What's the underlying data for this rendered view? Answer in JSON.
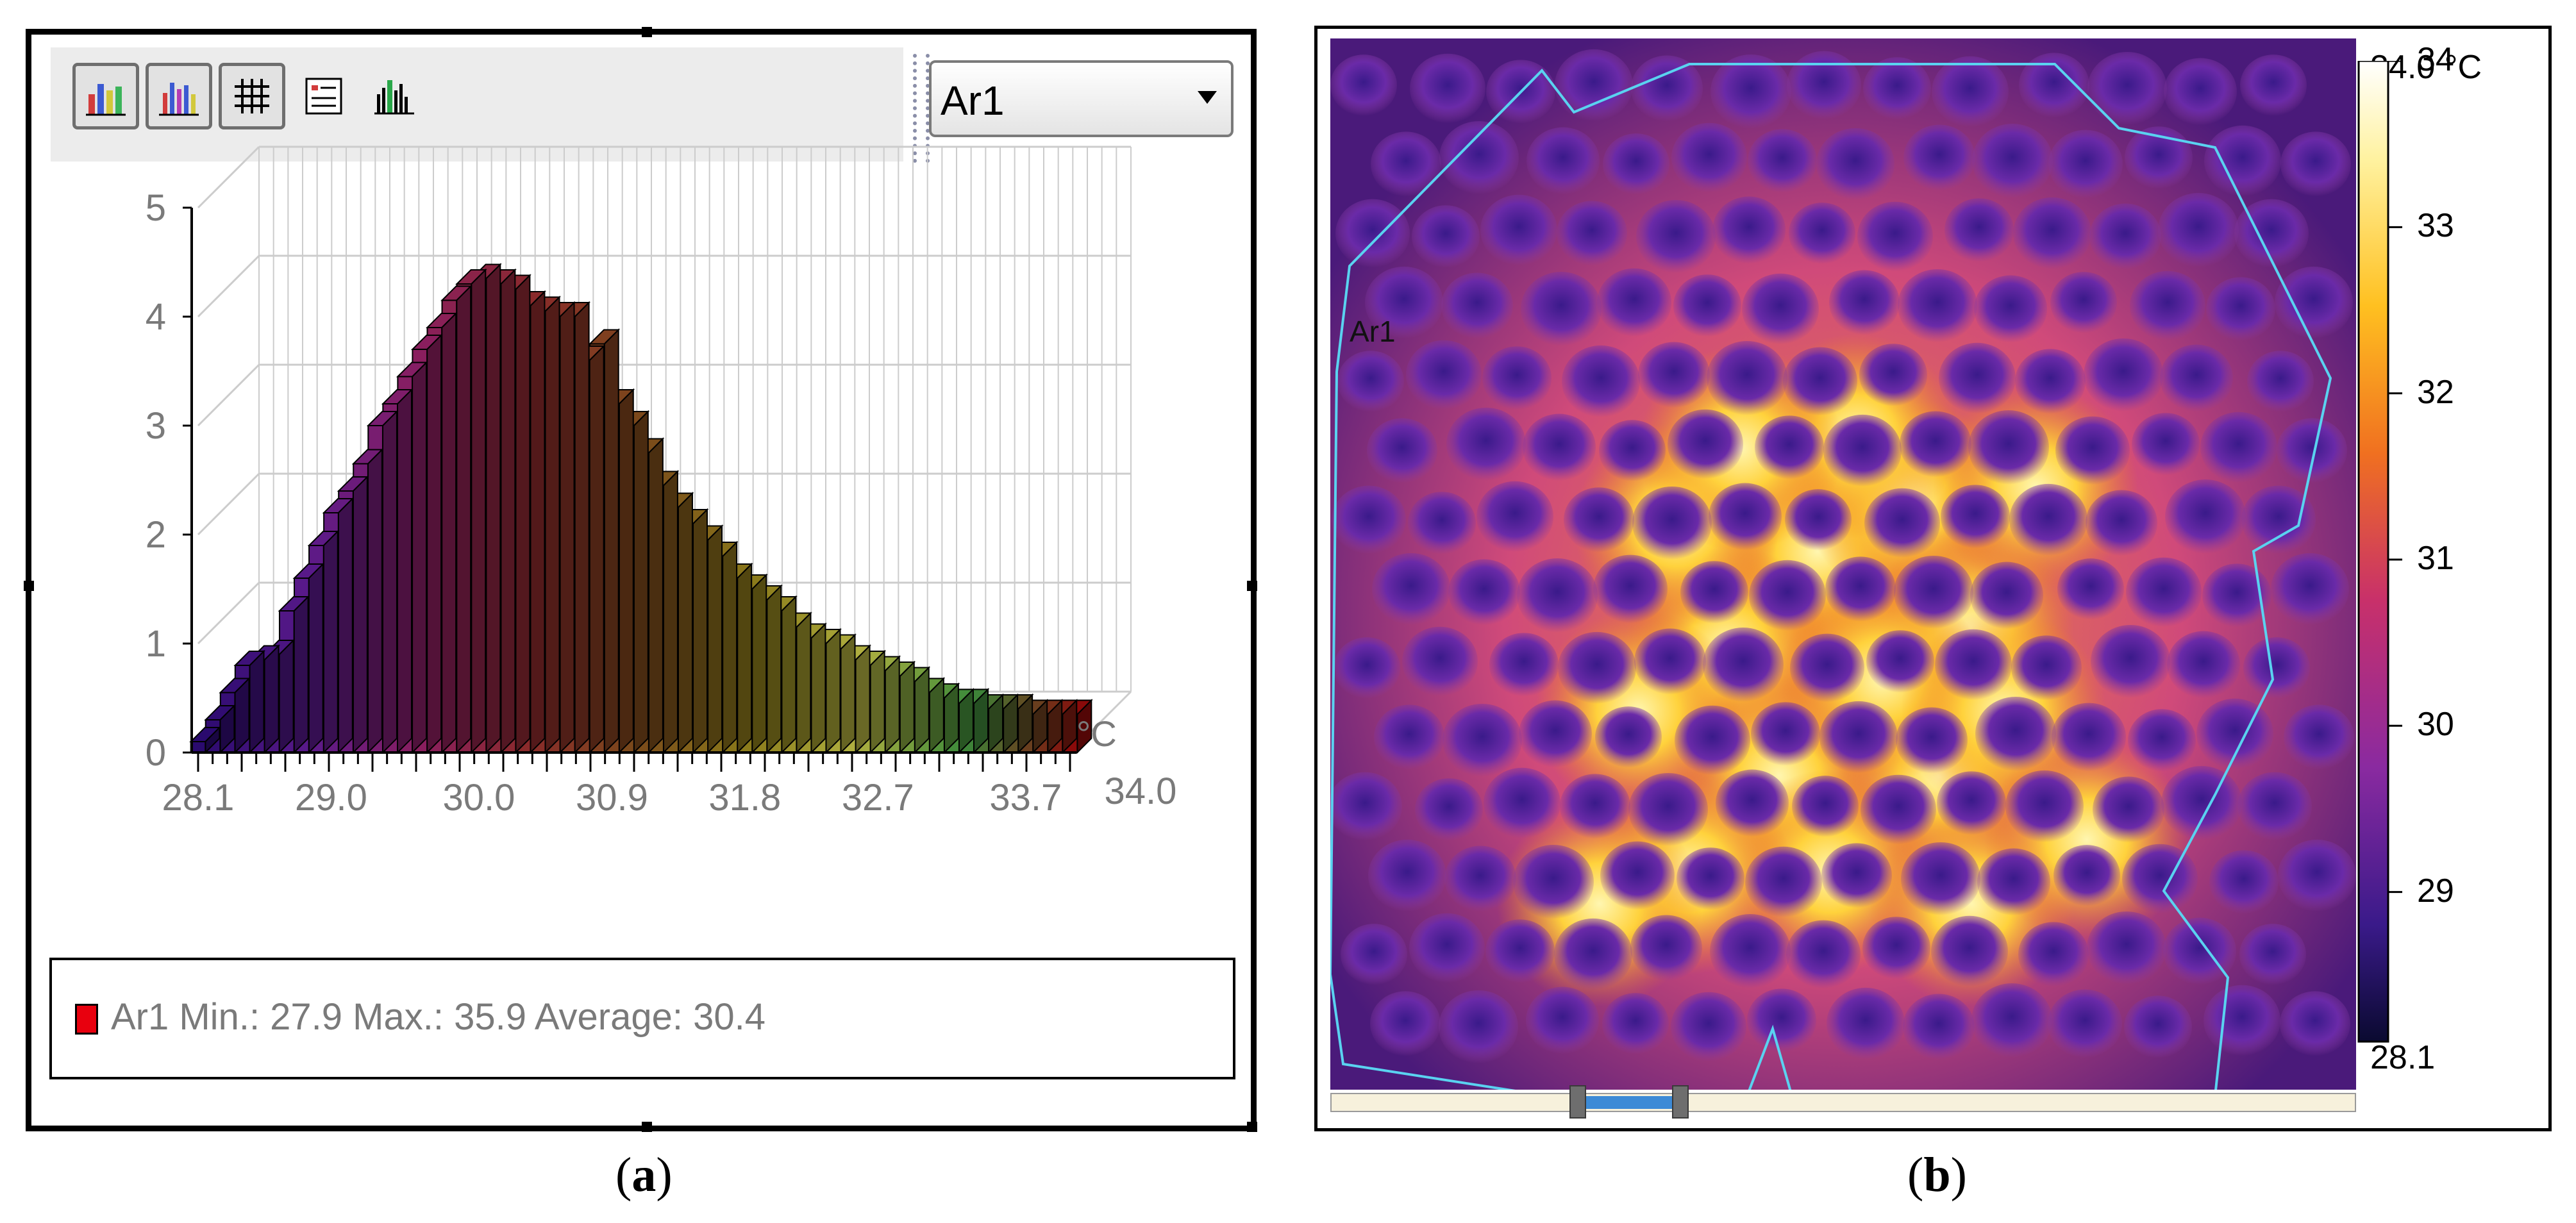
{
  "captions": {
    "a": {
      "open": "(",
      "letter": "a",
      "close": ")"
    },
    "b": {
      "open": "(",
      "letter": "b",
      "close": ")"
    }
  },
  "toolbar": {
    "icons": [
      "3d-bar-chart-icon",
      "2d-bar-chart-icon",
      "grid-icon",
      "legend-icon",
      "histogram-icon"
    ],
    "series_select_value": "Ar1"
  },
  "legend": {
    "swatch_color": "#e8000e",
    "text": "Ar1 Min.: 27.9 Max.: 35.9 Average: 30.4"
  },
  "chart_data": {
    "type": "bar",
    "style": "3d-histogram",
    "title": "",
    "xlabel": "",
    "ylabel": "",
    "x_unit": "°C",
    "x_range": [
      28.1,
      34.0
    ],
    "ylim": [
      0,
      5
    ],
    "y_ticks": [
      0,
      1,
      2,
      3,
      4,
      5
    ],
    "x_tick_labels": [
      "28.1",
      "29.0",
      "30.0",
      "30.9",
      "31.8",
      "32.7",
      "33.7",
      "34.0"
    ],
    "grid": true,
    "color_scale": [
      "#2a0a6e",
      "#5a1a8a",
      "#8a1e60",
      "#8a2a2a",
      "#7a4a1a",
      "#8a7a1a",
      "#b0b040",
      "#3a8a3a",
      "#8a0a0a"
    ],
    "series": [
      {
        "name": "Ar1",
        "x": [
          28.1,
          28.2,
          28.3,
          28.4,
          28.5,
          28.6,
          28.7,
          28.8,
          28.9,
          29.0,
          29.1,
          29.2,
          29.3,
          29.4,
          29.5,
          29.6,
          29.7,
          29.8,
          29.9,
          30.0,
          30.1,
          30.2,
          30.3,
          30.4,
          30.5,
          30.6,
          30.7,
          30.8,
          30.9,
          31.0,
          31.1,
          31.2,
          31.3,
          31.4,
          31.5,
          31.6,
          31.7,
          31.8,
          31.9,
          32.0,
          32.1,
          32.2,
          32.3,
          32.4,
          32.5,
          32.6,
          32.7,
          32.8,
          32.9,
          33.0,
          33.1,
          33.2,
          33.3,
          33.4,
          33.5,
          33.6,
          33.7,
          33.8,
          33.9,
          34.0
        ],
        "values": [
          0.1,
          0.3,
          0.55,
          0.8,
          0.85,
          0.9,
          1.3,
          1.6,
          1.9,
          2.2,
          2.4,
          2.65,
          3.0,
          3.2,
          3.45,
          3.7,
          3.9,
          4.15,
          4.3,
          4.35,
          4.3,
          4.25,
          4.1,
          4.05,
          4.0,
          4.0,
          3.6,
          3.75,
          3.2,
          3.0,
          2.75,
          2.45,
          2.25,
          2.1,
          1.95,
          1.8,
          1.6,
          1.5,
          1.4,
          1.3,
          1.15,
          1.05,
          1.0,
          0.95,
          0.85,
          0.8,
          0.75,
          0.7,
          0.65,
          0.55,
          0.5,
          0.45,
          0.45,
          0.4,
          0.4,
          0.4,
          0.35,
          0.35,
          0.35,
          0.35
        ]
      }
    ]
  },
  "thermal_image": {
    "area_label": "Ar1",
    "colorbar": {
      "max_label": "34.0 °C",
      "min_label": "28.1",
      "min": 28.1,
      "max": 34.0,
      "ticks": [
        "34",
        "33",
        "32",
        "31",
        "30",
        "29"
      ],
      "tick_values": [
        34,
        33,
        32,
        31,
        30,
        29
      ]
    },
    "region_outline_color": "#5ad2f0",
    "slider": {
      "range_start": 0.24,
      "range_end": 0.34
    }
  }
}
